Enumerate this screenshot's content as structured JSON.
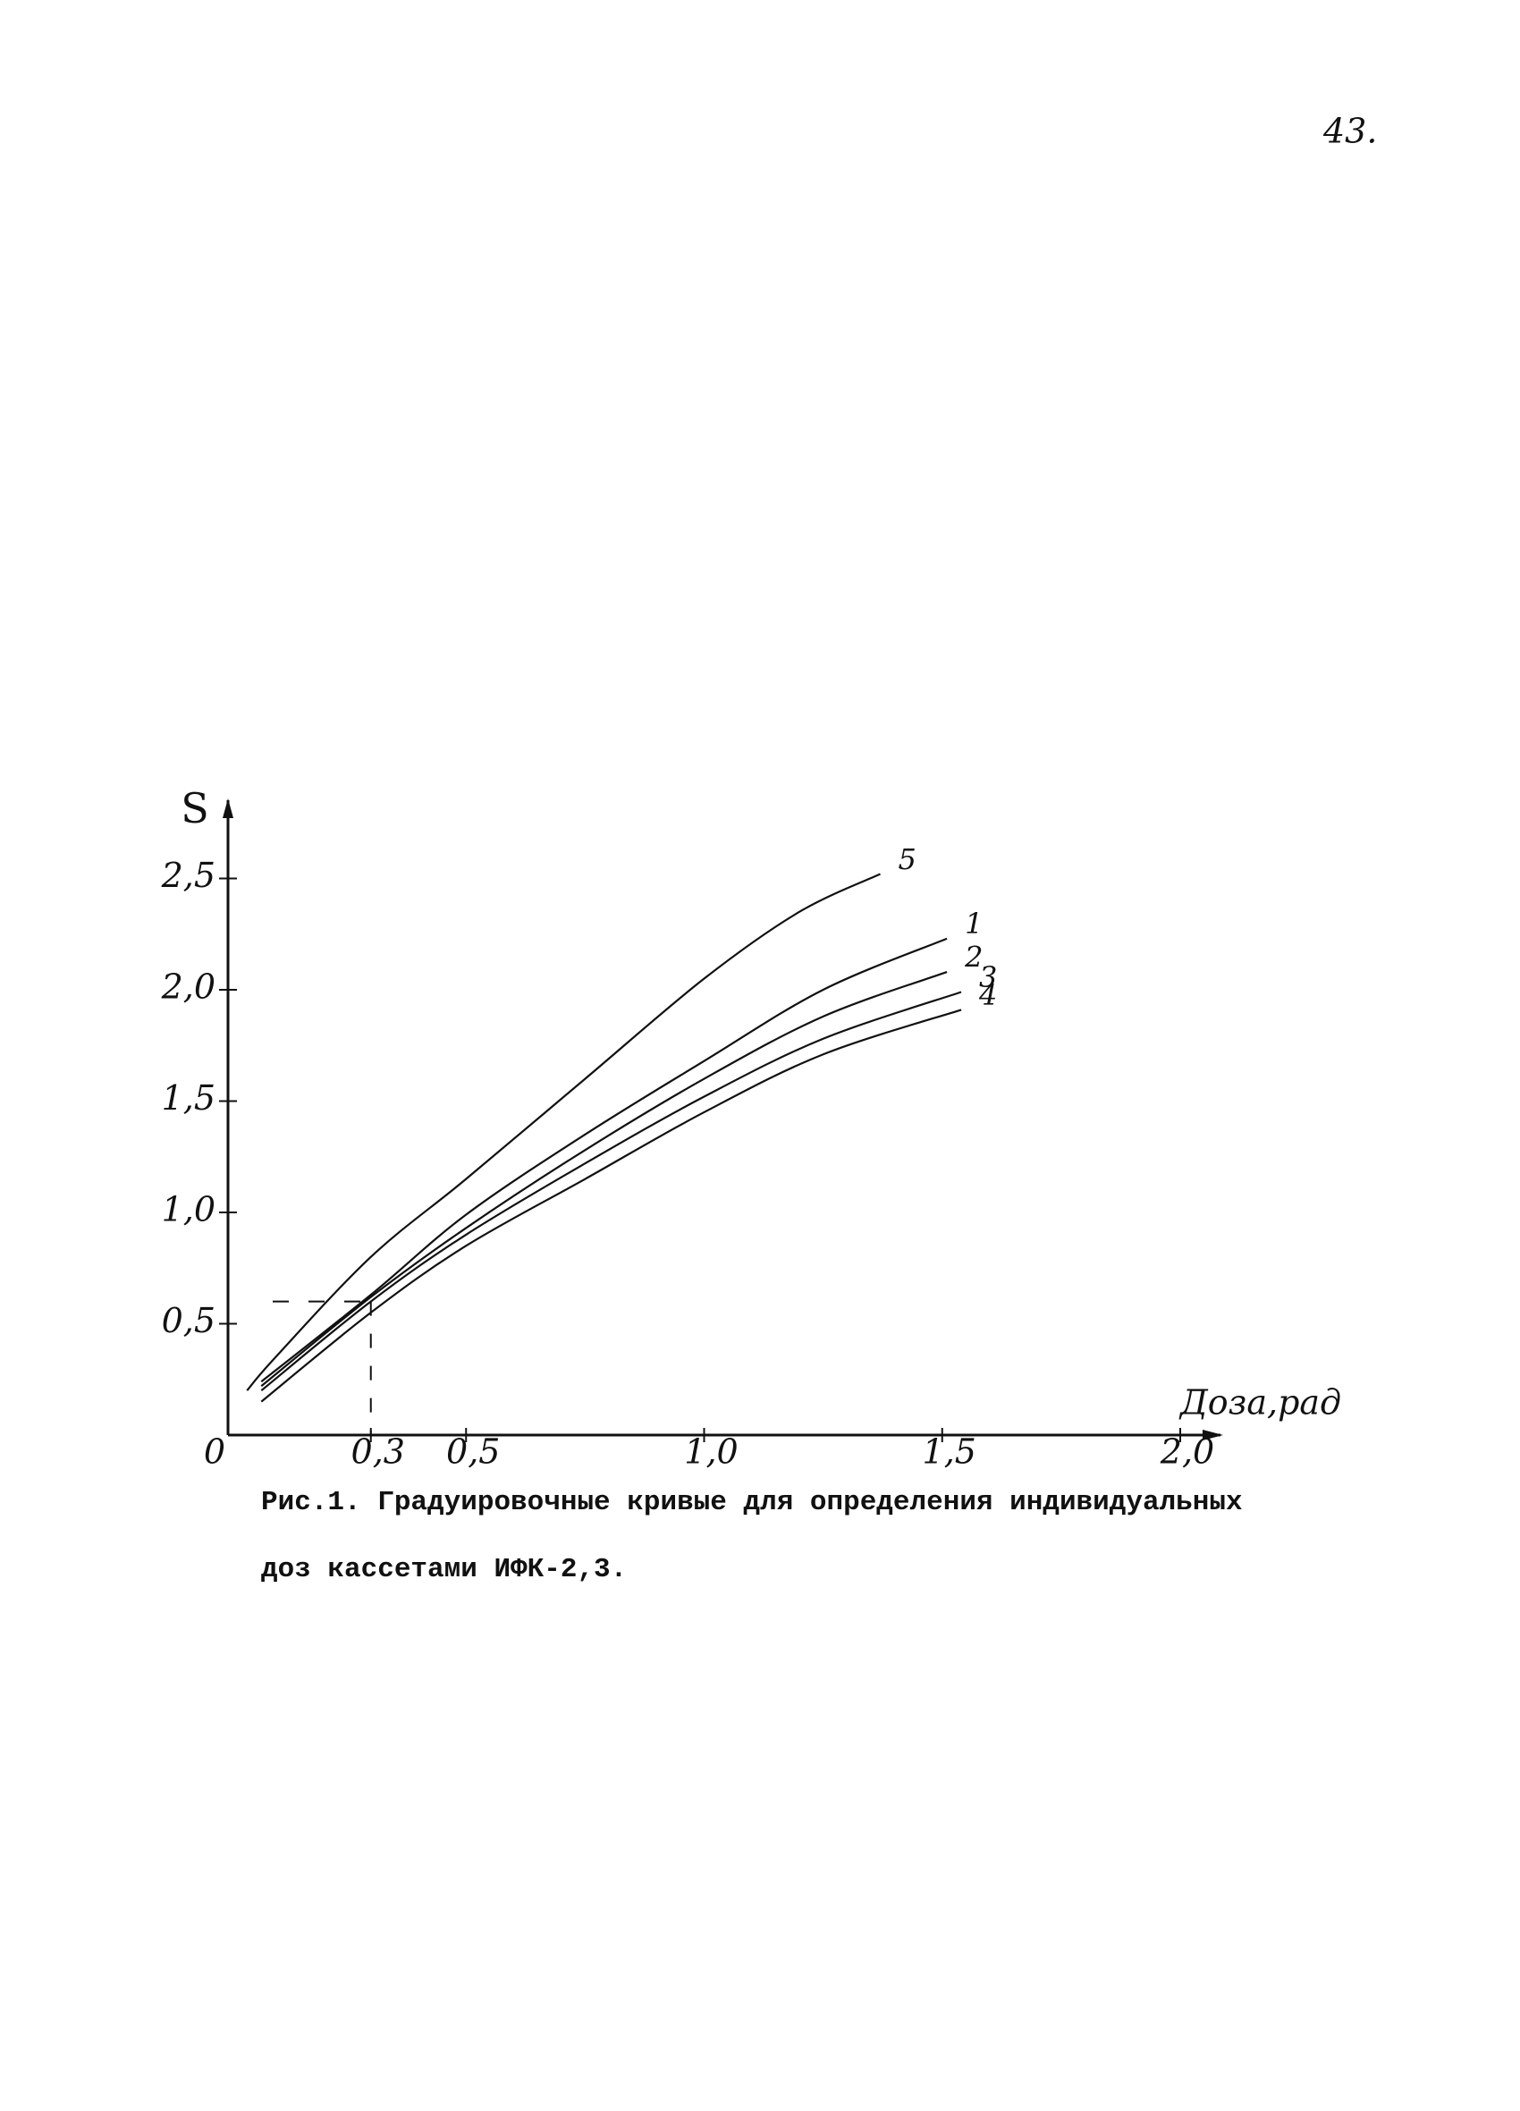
{
  "page_number": "43.",
  "chart_data": {
    "type": "line",
    "ylabel": "S",
    "xlabel": "Доза,рад",
    "xlim": [
      0,
      2.1
    ],
    "ylim": [
      0,
      2.75
    ],
    "xticks": [
      0,
      {
        "value": 0.3,
        "label": "0,3"
      },
      {
        "value": 0.5,
        "label": "0,5"
      },
      {
        "value": 1.0,
        "label": "1,0"
      },
      {
        "value": 1.5,
        "label": "1,5"
      },
      {
        "value": 2.0,
        "label": "2,0"
      }
    ],
    "yticks": [
      {
        "value": 0.5,
        "label": "0,5"
      },
      {
        "value": 1.0,
        "label": "1,0"
      },
      {
        "value": 1.5,
        "label": "1,5"
      },
      {
        "value": 2.0,
        "label": "2,0"
      },
      {
        "value": 2.5,
        "label": "2,5"
      }
    ],
    "guide": {
      "x": 0.3,
      "y": 0.6
    },
    "series": [
      {
        "name": "5",
        "color": "#111111",
        "x": [
          0.04,
          0.1,
          0.3,
          0.5,
          0.75,
          1.0,
          1.2,
          1.37
        ],
        "values": [
          0.2,
          0.35,
          0.8,
          1.15,
          1.6,
          2.05,
          2.35,
          2.52
        ]
      },
      {
        "name": "1",
        "color": "#111111",
        "x": [
          0.07,
          0.3,
          0.5,
          0.75,
          1.0,
          1.25,
          1.51
        ],
        "values": [
          0.24,
          0.63,
          0.99,
          1.35,
          1.68,
          2.0,
          2.23
        ]
      },
      {
        "name": "2",
        "color": "#111111",
        "x": [
          0.07,
          0.3,
          0.5,
          0.75,
          1.0,
          1.25,
          1.51
        ],
        "values": [
          0.22,
          0.62,
          0.93,
          1.28,
          1.6,
          1.88,
          2.08
        ]
      },
      {
        "name": "3",
        "color": "#111111",
        "x": [
          0.07,
          0.3,
          0.5,
          0.75,
          1.0,
          1.25,
          1.54
        ],
        "values": [
          0.2,
          0.6,
          0.9,
          1.22,
          1.52,
          1.78,
          1.99
        ]
      },
      {
        "name": "4",
        "color": "#111111",
        "x": [
          0.07,
          0.3,
          0.5,
          0.75,
          1.0,
          1.25,
          1.54
        ],
        "values": [
          0.15,
          0.55,
          0.85,
          1.15,
          1.45,
          1.71,
          1.91
        ]
      }
    ],
    "caption": [
      "Рис.1. Градуировочные кривые для определения индивидуальных",
      "доз кассетами ИФК-2,3."
    ]
  }
}
